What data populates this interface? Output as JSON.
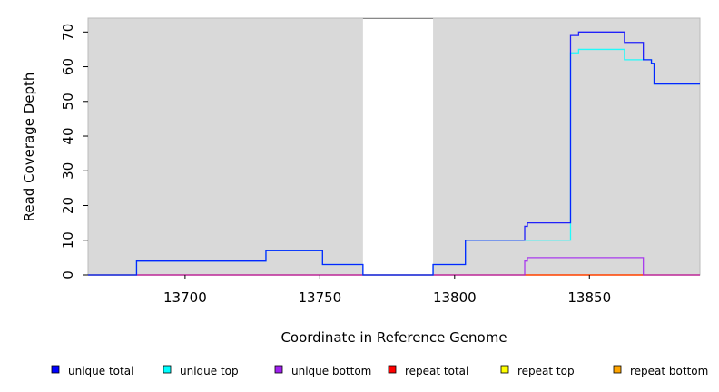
{
  "chart_data": {
    "type": "line",
    "xlabel": "Coordinate in Reference Genome",
    "ylabel": "Read Coverage Depth",
    "xlim": [
      13664,
      13891
    ],
    "ylim": [
      0,
      74
    ],
    "x_ticks": [
      13700,
      13750,
      13800,
      13850
    ],
    "y_ticks": [
      0,
      10,
      20,
      30,
      40,
      50,
      60,
      70
    ],
    "gap_region": [
      13766,
      13792
    ],
    "legend_position": "bottom",
    "colors": {
      "panel_bg": "#d9d9d9",
      "gap_bg": "#ffffff"
    },
    "series": [
      {
        "name": "unique total",
        "color": "#0000ff",
        "steps": [
          [
            13664,
            0
          ],
          [
            13682,
            4
          ],
          [
            13730,
            7
          ],
          [
            13751,
            3
          ],
          [
            13766,
            0
          ],
          [
            13792,
            3
          ],
          [
            13804,
            10
          ],
          [
            13826,
            14
          ],
          [
            13827,
            15
          ],
          [
            13843,
            69
          ],
          [
            13846,
            70
          ],
          [
            13863,
            67
          ],
          [
            13870,
            62
          ],
          [
            13873,
            61
          ],
          [
            13874,
            55
          ],
          [
            13891,
            55
          ]
        ]
      },
      {
        "name": "unique top",
        "color": "#00ffff",
        "steps": [
          [
            13664,
            0
          ],
          [
            13682,
            4
          ],
          [
            13730,
            7
          ],
          [
            13751,
            3
          ],
          [
            13766,
            0
          ],
          [
            13792,
            3
          ],
          [
            13804,
            10
          ],
          [
            13843,
            64
          ],
          [
            13846,
            65
          ],
          [
            13863,
            62
          ],
          [
            13870,
            62
          ],
          [
            13873,
            61
          ],
          [
            13874,
            55
          ],
          [
            13891,
            55
          ]
        ]
      },
      {
        "name": "unique bottom",
        "color": "#a020f0",
        "steps": [
          [
            13664,
            0
          ],
          [
            13826,
            4
          ],
          [
            13827,
            5
          ],
          [
            13870,
            0
          ],
          [
            13891,
            0
          ]
        ]
      },
      {
        "name": "repeat total",
        "color": "#ff0000",
        "steps": [
          [
            13664,
            0
          ],
          [
            13891,
            0
          ]
        ]
      },
      {
        "name": "repeat top",
        "color": "#ffff00",
        "steps": [
          [
            13664,
            0
          ],
          [
            13891,
            0
          ]
        ]
      },
      {
        "name": "repeat bottom",
        "color": "#ffa500",
        "steps": [
          [
            13664,
            0
          ],
          [
            13826,
            0
          ],
          [
            13870,
            0
          ],
          [
            13891,
            0
          ]
        ]
      }
    ]
  }
}
